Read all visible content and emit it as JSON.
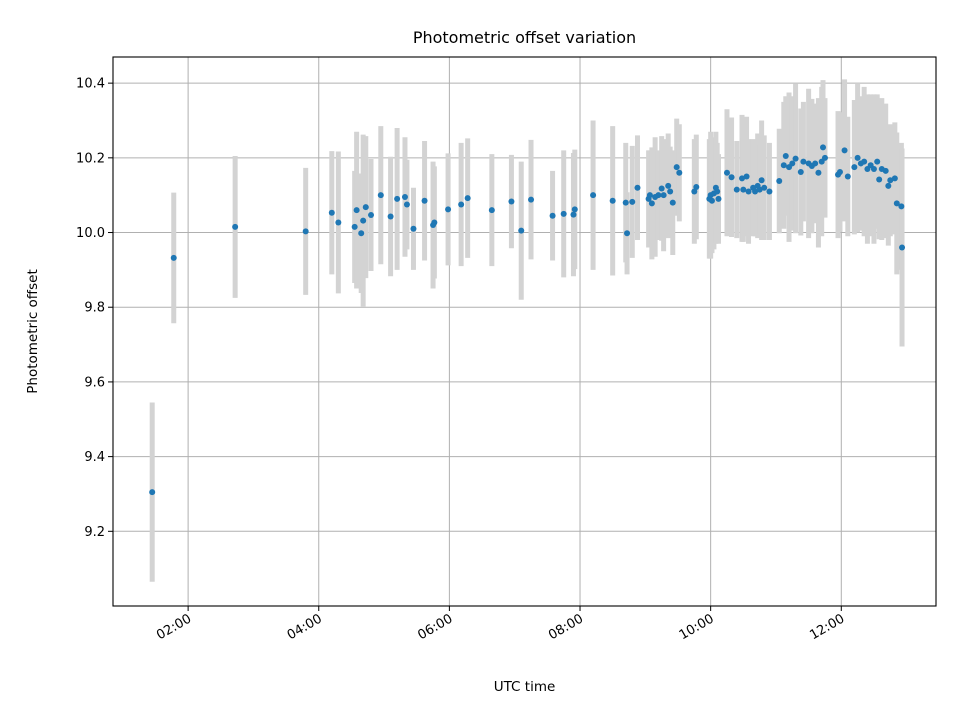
{
  "chart_data": {
    "type": "scatter",
    "title": "Photometric offset variation",
    "xlabel": "UTC time",
    "ylabel": "Photometric offset",
    "x_unit": "hours UTC",
    "xlim": [
      0.85,
      13.45
    ],
    "ylim": [
      9.0,
      10.47
    ],
    "grid": true,
    "x_ticks": [
      {
        "value": 2,
        "label": "02:00"
      },
      {
        "value": 4,
        "label": "04:00"
      },
      {
        "value": 6,
        "label": "06:00"
      },
      {
        "value": 8,
        "label": "08:00"
      },
      {
        "value": 10,
        "label": "10:00"
      },
      {
        "value": 12,
        "label": "12:00"
      }
    ],
    "y_ticks": [
      {
        "value": 9.2,
        "label": "9.2"
      },
      {
        "value": 9.4,
        "label": "9.4"
      },
      {
        "value": 9.6,
        "label": "9.6"
      },
      {
        "value": 9.8,
        "label": "9.8"
      },
      {
        "value": 10.0,
        "label": "10.0"
      },
      {
        "value": 10.2,
        "label": "10.2"
      },
      {
        "value": 10.4,
        "label": "10.4"
      }
    ],
    "colors": {
      "point": "#1f77b4",
      "errorbar": "#d3d3d3"
    },
    "series": [
      {
        "name": "photometric offset",
        "points": [
          [
            1.45,
            9.305,
            0.24
          ],
          [
            1.78,
            9.932,
            0.175
          ],
          [
            2.72,
            10.015,
            0.19
          ],
          [
            3.8,
            10.003,
            0.17
          ],
          [
            4.2,
            10.053,
            0.165
          ],
          [
            4.3,
            10.027,
            0.19
          ],
          [
            4.55,
            10.015,
            0.15
          ],
          [
            4.58,
            10.06,
            0.21
          ],
          [
            4.65,
            9.998,
            0.16
          ],
          [
            4.68,
            10.032,
            0.23
          ],
          [
            4.72,
            10.068,
            0.19
          ],
          [
            4.8,
            10.047,
            0.15
          ],
          [
            4.95,
            10.1,
            0.185
          ],
          [
            5.1,
            10.043,
            0.16
          ],
          [
            5.2,
            10.09,
            0.19
          ],
          [
            5.32,
            10.095,
            0.16
          ],
          [
            5.35,
            10.075,
            0.12
          ],
          [
            5.45,
            10.01,
            0.11
          ],
          [
            5.62,
            10.085,
            0.16
          ],
          [
            5.75,
            10.02,
            0.17
          ],
          [
            5.77,
            10.027,
            0.15
          ],
          [
            5.98,
            10.062,
            0.15
          ],
          [
            6.18,
            10.075,
            0.165
          ],
          [
            6.28,
            10.092,
            0.16
          ],
          [
            6.65,
            10.06,
            0.15
          ],
          [
            6.95,
            10.083,
            0.125
          ],
          [
            7.1,
            10.005,
            0.185
          ],
          [
            7.25,
            10.088,
            0.16
          ],
          [
            7.58,
            10.045,
            0.12
          ],
          [
            7.75,
            10.05,
            0.17
          ],
          [
            7.9,
            10.048,
            0.165
          ],
          [
            7.92,
            10.062,
            0.16
          ],
          [
            8.2,
            10.1,
            0.2
          ],
          [
            8.5,
            10.085,
            0.2
          ],
          [
            8.7,
            10.08,
            0.16
          ],
          [
            8.72,
            9.998,
            0.11
          ],
          [
            8.8,
            10.082,
            0.15
          ],
          [
            8.88,
            10.12,
            0.14
          ],
          [
            9.05,
            10.09,
            0.13
          ],
          [
            9.07,
            10.1,
            0.12
          ],
          [
            9.1,
            10.078,
            0.15
          ],
          [
            9.15,
            10.095,
            0.16
          ],
          [
            9.2,
            10.1,
            0.12
          ],
          [
            9.25,
            10.118,
            0.14
          ],
          [
            9.28,
            10.1,
            0.15
          ],
          [
            9.35,
            10.125,
            0.14
          ],
          [
            9.38,
            10.11,
            0.12
          ],
          [
            9.42,
            10.08,
            0.14
          ],
          [
            9.48,
            10.175,
            0.13
          ],
          [
            9.52,
            10.16,
            0.13
          ],
          [
            9.75,
            10.11,
            0.14
          ],
          [
            9.78,
            10.122,
            0.14
          ],
          [
            9.98,
            10.09,
            0.16
          ],
          [
            10.0,
            10.1,
            0.17
          ],
          [
            10.02,
            10.085,
            0.14
          ],
          [
            10.05,
            10.105,
            0.15
          ],
          [
            10.08,
            10.12,
            0.15
          ],
          [
            10.1,
            10.11,
            0.13
          ],
          [
            10.12,
            10.09,
            0.12
          ],
          [
            10.25,
            10.16,
            0.17
          ],
          [
            10.32,
            10.148,
            0.16
          ],
          [
            10.4,
            10.115,
            0.13
          ],
          [
            10.48,
            10.145,
            0.17
          ],
          [
            10.5,
            10.115,
            0.14
          ],
          [
            10.55,
            10.15,
            0.16
          ],
          [
            10.58,
            10.11,
            0.14
          ],
          [
            10.65,
            10.12,
            0.13
          ],
          [
            10.68,
            10.11,
            0.12
          ],
          [
            10.72,
            10.125,
            0.14
          ],
          [
            10.75,
            10.115,
            0.12
          ],
          [
            10.78,
            10.14,
            0.16
          ],
          [
            10.82,
            10.12,
            0.14
          ],
          [
            10.9,
            10.11,
            0.13
          ],
          [
            11.05,
            10.138,
            0.14
          ],
          [
            11.12,
            10.18,
            0.17
          ],
          [
            11.15,
            10.205,
            0.16
          ],
          [
            11.2,
            10.175,
            0.2
          ],
          [
            11.25,
            10.185,
            0.18
          ],
          [
            11.3,
            10.198,
            0.2
          ],
          [
            11.38,
            10.162,
            0.17
          ],
          [
            11.42,
            10.19,
            0.16
          ],
          [
            11.5,
            10.185,
            0.2
          ],
          [
            11.55,
            10.178,
            0.18
          ],
          [
            11.6,
            10.185,
            0.16
          ],
          [
            11.65,
            10.16,
            0.2
          ],
          [
            11.7,
            10.19,
            0.2
          ],
          [
            11.72,
            10.228,
            0.18
          ],
          [
            11.75,
            10.2,
            0.16
          ],
          [
            11.95,
            10.155,
            0.17
          ],
          [
            11.98,
            10.162,
            0.16
          ],
          [
            12.05,
            10.22,
            0.19
          ],
          [
            12.1,
            10.15,
            0.16
          ],
          [
            12.2,
            10.175,
            0.18
          ],
          [
            12.25,
            10.2,
            0.2
          ],
          [
            12.3,
            10.185,
            0.18
          ],
          [
            12.35,
            10.19,
            0.2
          ],
          [
            12.4,
            10.17,
            0.2
          ],
          [
            12.45,
            10.18,
            0.19
          ],
          [
            12.5,
            10.17,
            0.2
          ],
          [
            12.55,
            10.19,
            0.18
          ],
          [
            12.58,
            10.142,
            0.16
          ],
          [
            12.62,
            10.17,
            0.19
          ],
          [
            12.68,
            10.165,
            0.18
          ],
          [
            12.72,
            10.125,
            0.16
          ],
          [
            12.75,
            10.14,
            0.15
          ],
          [
            12.82,
            10.145,
            0.15
          ],
          [
            12.85,
            10.078,
            0.19
          ],
          [
            12.92,
            10.07,
            0.17
          ],
          [
            12.93,
            9.96,
            0.265
          ]
        ]
      }
    ]
  }
}
